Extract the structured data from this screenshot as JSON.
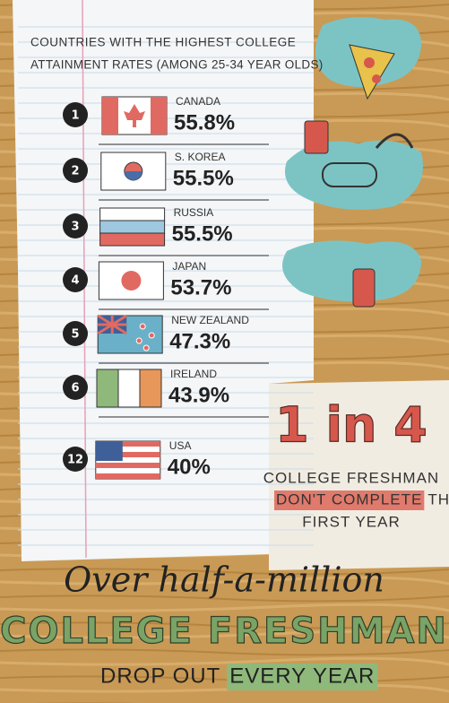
{
  "header": {
    "line1": "COUNTRIES WITH THE HIGHEST COLLEGE",
    "line2": "ATTAINMENT RATES (AMONG 25-34 YEAR OLDS)"
  },
  "rankings": [
    {
      "rank": 1,
      "country": "CANADA",
      "rate": "55.8%"
    },
    {
      "rank": 2,
      "country": "S. KOREA",
      "rate": "55.5%"
    },
    {
      "rank": 3,
      "country": "RUSSIA",
      "rate": "55.5%"
    },
    {
      "rank": 4,
      "country": "JAPAN",
      "rate": "53.7%"
    },
    {
      "rank": 5,
      "country": "NEW ZEALAND",
      "rate": "47.3%"
    },
    {
      "rank": 6,
      "country": "IRELAND",
      "rate": "43.9%"
    },
    {
      "rank": 12,
      "country": "USA",
      "rate": "40%"
    }
  ],
  "callout": {
    "headline": "1 in 4",
    "line1": "COLLEGE FRESHMAN",
    "highlight": "DON'T COMPLETE",
    "line2_rest": "THEIR",
    "line3": "FIRST YEAR"
  },
  "footer": {
    "line1": "Over half-a-million",
    "line2": "COLLEGE FRESHMAN",
    "line3": "DROP OUT",
    "highlight": "EVERY YEAR"
  }
}
